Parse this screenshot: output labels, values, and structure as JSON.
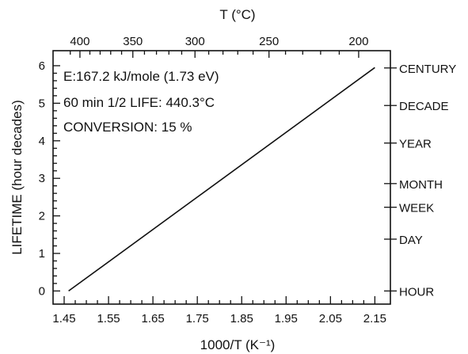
{
  "chart_data": {
    "type": "line",
    "xlabel": "1000/T (K⁻¹)",
    "ylabel": "LIFETIME (hour decades)",
    "top_xlabel": "T (°C)",
    "xlim": [
      1.425,
      2.185
    ],
    "ylim": [
      -0.35,
      6.4
    ],
    "x_ticks": [
      1.45,
      1.55,
      1.65,
      1.75,
      1.85,
      1.95,
      2.05,
      2.15
    ],
    "x_tick_labels": [
      "1.45",
      "1.55",
      "1.65",
      "1.75",
      "1.85",
      "1.95",
      "2.05",
      "2.15"
    ],
    "y_ticks": [
      0,
      1,
      2,
      3,
      4,
      5,
      6
    ],
    "y_tick_labels": [
      "0",
      "1",
      "2",
      "3",
      "4",
      "5",
      "6"
    ],
    "top_ticks_celsius": [
      400,
      350,
      300,
      250,
      200
    ],
    "top_tick_labels": [
      "400",
      "350",
      "300",
      "250",
      "200"
    ],
    "right_labels": [
      {
        "label": "HOUR",
        "value": 0
      },
      {
        "label": "DAY",
        "value": 1.38
      },
      {
        "label": "WEEK",
        "value": 2.23
      },
      {
        "label": "MONTH",
        "value": 2.86
      },
      {
        "label": "YEAR",
        "value": 3.94
      },
      {
        "label": "DECADE",
        "value": 4.94
      },
      {
        "label": "CENTURY",
        "value": 5.94
      }
    ],
    "series": [
      {
        "x": [
          1.46,
          2.15
        ],
        "y": [
          0.0,
          5.95
        ]
      }
    ],
    "annotations": [
      "E:167.2 kJ/mole (1.73 eV)",
      "60 min 1/2 LIFE: 440.3°C",
      "CONVERSION: 15 %"
    ],
    "grid": false
  }
}
